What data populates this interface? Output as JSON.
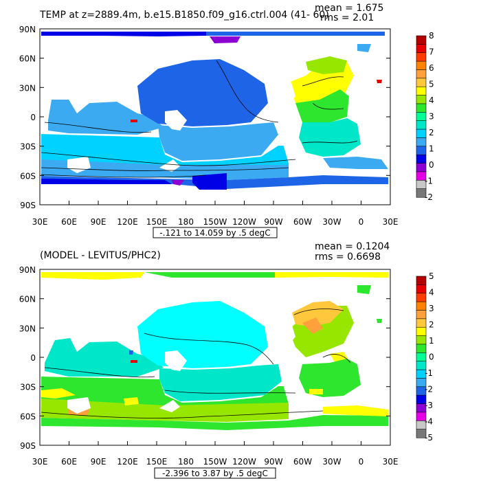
{
  "colors": {
    "ocean_palette": [
      "#ffffff",
      "#b4b4b4",
      "#e600e6",
      "#8c00d2",
      "#0000e6",
      "#1e64e6",
      "#3caaf0",
      "#00d2ff",
      "#00e6c8",
      "#00ff96",
      "#2ee62e",
      "#96e600",
      "#ffff00",
      "#ffc83c",
      "#ffa03c",
      "#ff8200",
      "#ff5000",
      "#e60000",
      "#b40000"
    ],
    "land": "#ffffff",
    "frame": "#000000"
  },
  "panels": [
    {
      "title_left": "TEMP at z=2889.4m, b.e15.B1850.f09_g16.ctrl.004 (41- 60)",
      "mean_text": "mean = 1.675",
      "rms_text": "rms = 2.01",
      "range_label": "-.121 to 14.059 by .5 degC",
      "lat_labels": [
        "90N",
        "60N",
        "30N",
        "0",
        "30S",
        "60S",
        "90S"
      ],
      "lon_labels": [
        "30E",
        "60E",
        "90E",
        "120E",
        "150E",
        "180",
        "150W",
        "120W",
        "90W",
        "60W",
        "30W",
        "0",
        "30E"
      ],
      "colorbar": {
        "tick_labels": [
          "8",
          "7",
          "6",
          "5",
          "4",
          "3",
          "2",
          "1",
          "0",
          "-1",
          "-2"
        ],
        "colors": [
          "#b40000",
          "#e60000",
          "#ff3c00",
          "#ff8200",
          "#ffa03c",
          "#ffc83c",
          "#ffff00",
          "#96e600",
          "#2ee62e",
          "#00ff96",
          "#00e6c8",
          "#00d2ff",
          "#3caaf0",
          "#1e64e6",
          "#0000e6",
          "#8c00d2",
          "#e600e6",
          "#c8c8c8",
          "#787878"
        ]
      }
    },
    {
      "title_left": "(MODEL - LEVITUS/PHC2)",
      "mean_text": "mean = 0.1204",
      "rms_text": "rms = 0.6698",
      "range_label": "-2.396 to 3.87 by .5 degC",
      "lat_labels": [
        "90N",
        "60N",
        "30N",
        "0",
        "30S",
        "60S",
        "90S"
      ],
      "lon_labels": [
        "30E",
        "60E",
        "90E",
        "120E",
        "150E",
        "180",
        "150W",
        "120W",
        "90W",
        "60W",
        "30W",
        "0",
        "30E"
      ],
      "colorbar": {
        "tick_labels": [
          "5",
          "4",
          "3",
          "2",
          "1",
          "0",
          "-1",
          "-2",
          "-3",
          "-4",
          "-5"
        ],
        "colors": [
          "#b40000",
          "#e60000",
          "#ff3c00",
          "#ff8200",
          "#ffa03c",
          "#ffc83c",
          "#ffff00",
          "#96e600",
          "#2ee62e",
          "#00ff96",
          "#00e6c8",
          "#00d2ff",
          "#3caaf0",
          "#1e64e6",
          "#0000e6",
          "#8c00d2",
          "#e600e6",
          "#c8c8c8",
          "#787878"
        ]
      }
    }
  ]
}
